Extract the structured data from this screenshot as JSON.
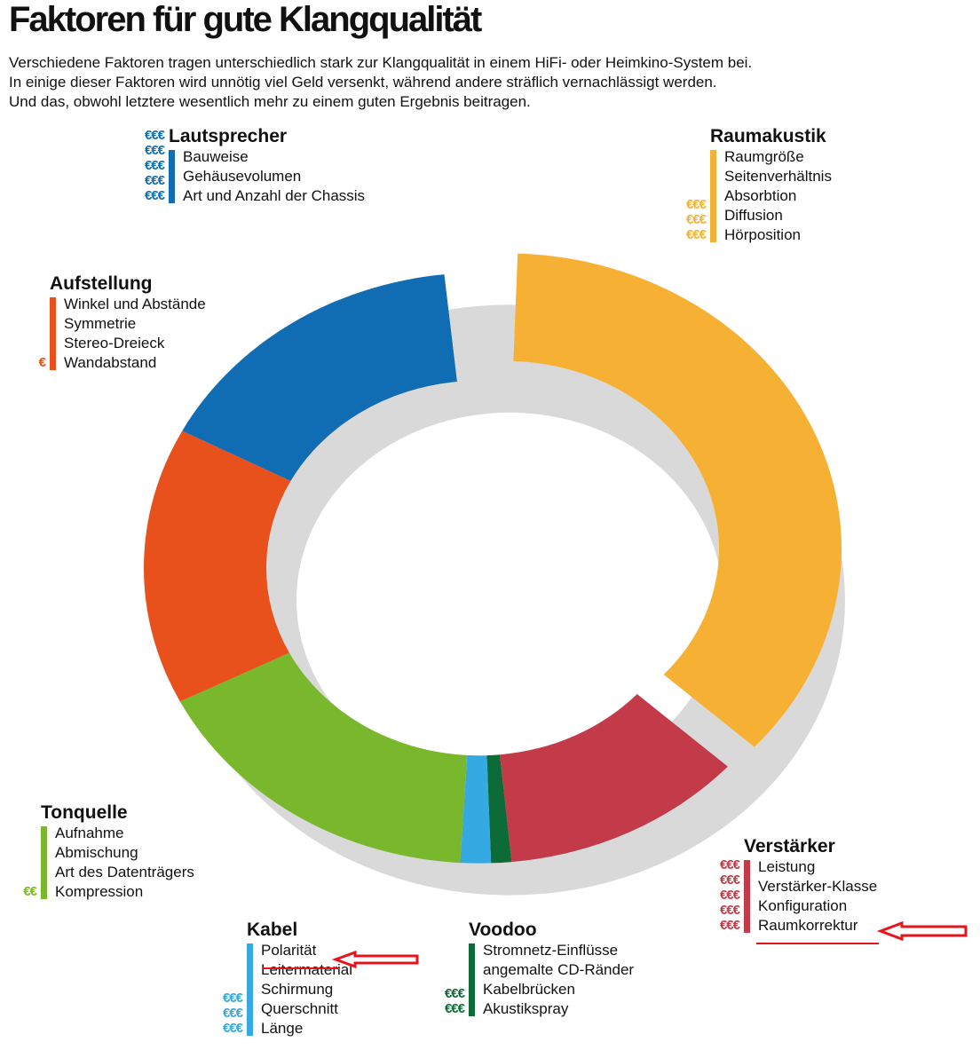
{
  "title": "Faktoren für gute Klangqualität",
  "intro": [
    "Verschiedene Faktoren tragen unterschiedlich stark zur Klangqualität in einem HiFi- oder Heimkino-System bei.",
    "In einige dieser Faktoren wird unnötig viel Geld versenkt, während andere sträflich vernachlässigt werden.",
    "Und das, obwohl letztere wesentlich mehr zu einem guten Ergebnis beitragen."
  ],
  "euro_symbol": "€",
  "chart_data": {
    "type": "pie",
    "style": "donut",
    "exploded": "Raumakustik",
    "categories": [
      "Raumakustik",
      "Verstärker",
      "Voodoo",
      "Kabel",
      "Tonquelle",
      "Aufstellung",
      "Lautsprecher"
    ],
    "values": [
      37,
      12,
      1,
      1.5,
      17,
      15.5,
      16
    ],
    "colors": [
      "#f6b135",
      "#c33a49",
      "#0c6b37",
      "#35a9e1",
      "#79b82c",
      "#e8501c",
      "#116db3"
    ]
  },
  "legends": [
    {
      "title": "Lautsprecher",
      "color": "#116db3",
      "items": [
        "Bauweise",
        "Gehäusevolumen",
        "Art und Anzahl der Chassis"
      ],
      "euro": [
        "€€€",
        "€€€",
        "€€€",
        "€€€",
        "€€€"
      ]
    },
    {
      "title": "Raumakustik",
      "color": "#f6b135",
      "items": [
        "Raumgröße",
        "Seitenverhältnis",
        "Absorbtion",
        "Diffusion",
        "Hörposition"
      ],
      "euro": [
        "€€€",
        "€€€",
        "€€€"
      ]
    },
    {
      "title": "Aufstellung",
      "color": "#e8501c",
      "items": [
        "Winkel und Abstände",
        "Symmetrie",
        "Stereo-Dreieck",
        "Wandabstand"
      ],
      "euro": [
        "€"
      ]
    },
    {
      "title": "Tonquelle",
      "color": "#79b82c",
      "items": [
        "Aufnahme",
        "Abmischung",
        "Art des Datenträgers",
        "Kompression"
      ],
      "euro": [
        "€€"
      ]
    },
    {
      "title": "Verstärker",
      "color": "#c33a49",
      "items": [
        "Leistung",
        "Verstärker-Klasse",
        "Konfiguration",
        "Raumkorrektur"
      ],
      "euro": [
        "€€€",
        "€€€",
        "€€€",
        "€€€",
        "€€€"
      ]
    },
    {
      "title": "Kabel",
      "color": "#35a9e1",
      "items": [
        "Polarität",
        "Leitermaterial",
        "Schirmung",
        "Querschnitt",
        "Länge"
      ],
      "euro": [
        "€€€",
        "€€€",
        "€€€"
      ]
    },
    {
      "title": "Voodoo",
      "color": "#0c6b37",
      "items": [
        "Stromnetz-Einflüsse",
        "angemalte CD-Ränder",
        "Kabelbrücken",
        "Akustikspray"
      ],
      "euro": [
        "€€€",
        "€€€"
      ]
    }
  ],
  "annotation_color": "#e8141c"
}
